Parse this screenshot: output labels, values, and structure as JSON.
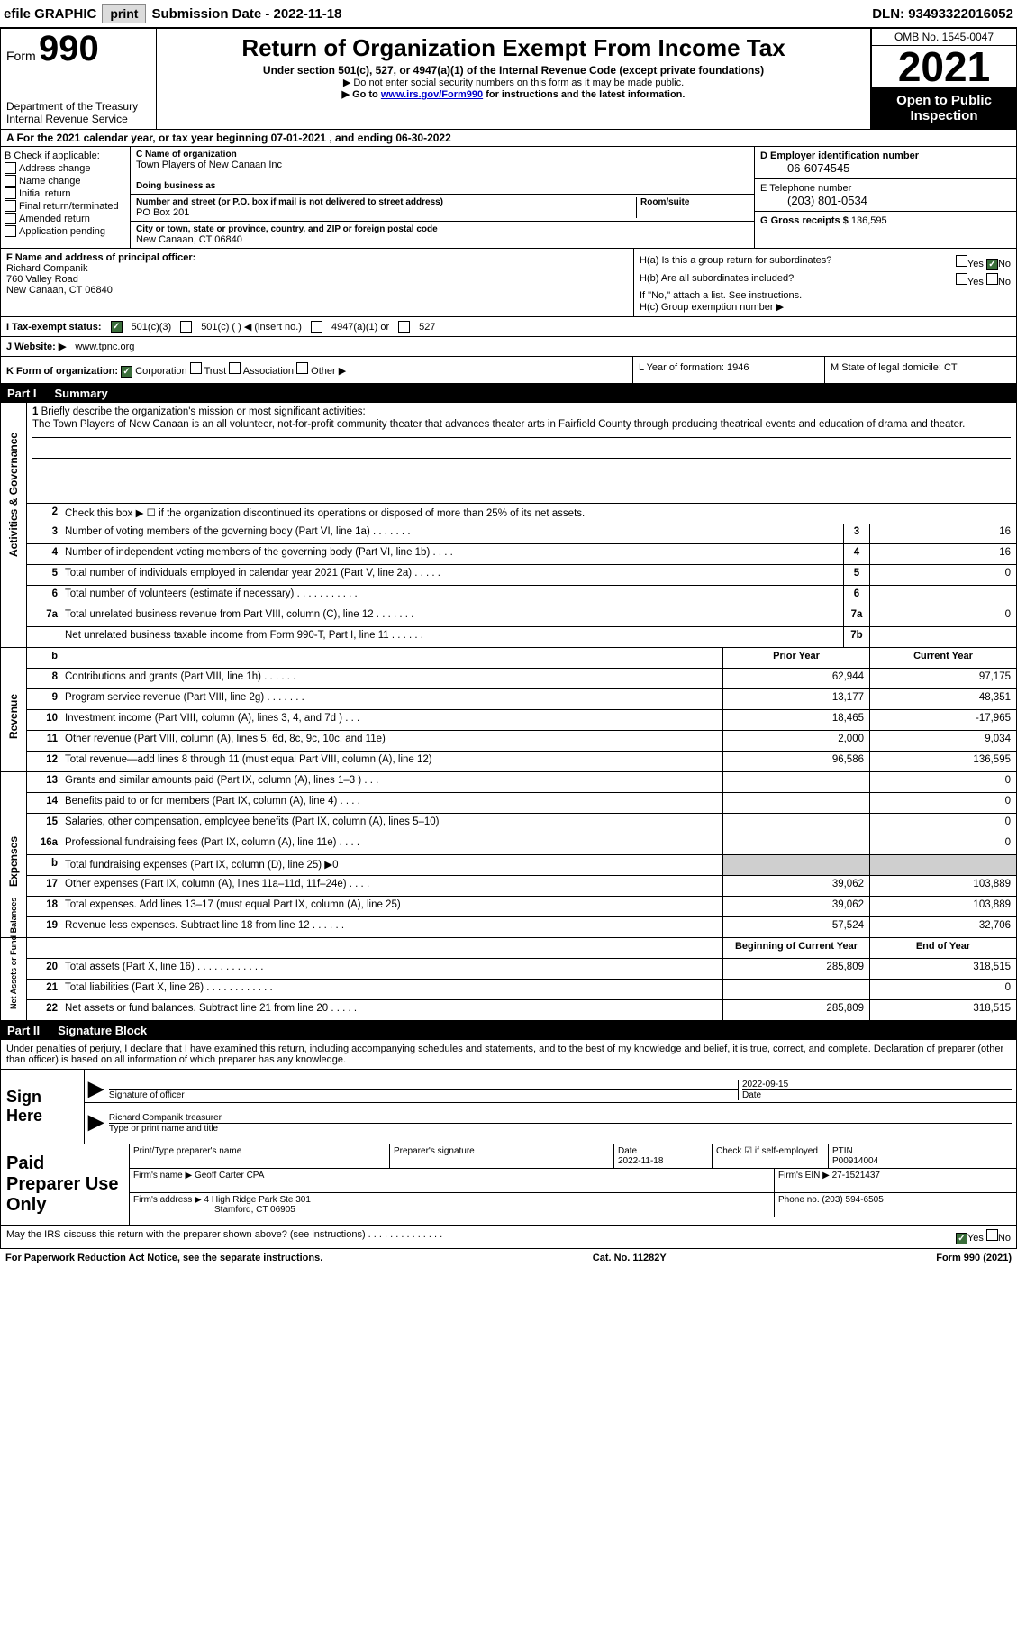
{
  "topbar": {
    "efile_label": "efile GRAPHIC",
    "print_btn": "print",
    "submission_label": "Submission Date - 2022-11-18",
    "dln_label": "DLN: 93493322016052"
  },
  "header": {
    "form_word": "Form",
    "form_number": "990",
    "title": "Return of Organization Exempt From Income Tax",
    "subtitle": "Under section 501(c), 527, or 4947(a)(1) of the Internal Revenue Code (except private foundations)",
    "ssn_line": "▶ Do not enter social security numbers on this form as it may be made public.",
    "goto_prefix": "▶ Go to ",
    "goto_link": "www.irs.gov/Form990",
    "goto_suffix": " for instructions and the latest information.",
    "omb": "OMB No. 1545-0047",
    "year": "2021",
    "open_public": "Open to Public Inspection",
    "dept": "Department of the Treasury",
    "irs": "Internal Revenue Service"
  },
  "row_a": "A For the 2021 calendar year, or tax year beginning 07-01-2021    , and ending 06-30-2022",
  "col_b": {
    "label": "B Check if applicable:",
    "items": [
      "Address change",
      "Name change",
      "Initial return",
      "Final return/terminated",
      "Amended return",
      "Application pending"
    ]
  },
  "col_c": {
    "name_label": "C Name of organization",
    "name": "Town Players of New Canaan Inc",
    "dba_label": "Doing business as",
    "dba": "",
    "street_label": "Number and street (or P.O. box if mail is not delivered to street address)",
    "room_label": "Room/suite",
    "street": "PO Box 201",
    "city_label": "City or town, state or province, country, and ZIP or foreign postal code",
    "city": "New Canaan, CT  06840"
  },
  "col_d": {
    "ein_label": "D Employer identification number",
    "ein": "06-6074545",
    "phone_label": "E Telephone number",
    "phone": "(203) 801-0534",
    "gross_label": "G Gross receipts $",
    "gross": "136,595"
  },
  "row_f": {
    "label": "F  Name and address of principal officer:",
    "name": "Richard Companik",
    "street": "760 Valley Road",
    "city": "New Canaan, CT  06840"
  },
  "row_h": {
    "ha_label": "H(a)  Is this a group return for subordinates?",
    "hb_label": "H(b)  Are all subordinates included?",
    "hb_note": "If \"No,\" attach a list. See instructions.",
    "hc_label": "H(c)  Group exemption number ▶",
    "yes": "Yes",
    "no": "No"
  },
  "row_i": {
    "label": "I  Tax-exempt status:",
    "opts": [
      "501(c)(3)",
      "501(c) (  ) ◀ (insert no.)",
      "4947(a)(1) or",
      "527"
    ]
  },
  "row_j": {
    "label": "J  Website: ▶",
    "value": " www.tpnc.org"
  },
  "row_k": {
    "label": "K Form of organization:",
    "opts": [
      "Corporation",
      "Trust",
      "Association",
      "Other ▶"
    ]
  },
  "row_l": {
    "label": "L Year of formation: 1946"
  },
  "row_m": {
    "label": "M State of legal domicile: CT"
  },
  "part1": {
    "num": "Part I",
    "title": "Summary",
    "tab_ag": "Activities & Governance",
    "tab_rev": "Revenue",
    "tab_exp": "Expenses",
    "tab_na": "Net Assets or Fund Balances",
    "mission_label": "Briefly describe the organization's mission or most significant activities:",
    "mission": "The Town Players of New Canaan is an all volunteer, not-for-profit community theater that advances theater arts in Fairfield County through producing theatrical events and education of drama and theater.",
    "line2": "Check this box ▶ ☐  if the organization discontinued its operations or disposed of more than 25% of its net assets.",
    "rows_gov": [
      {
        "n": "3",
        "label": "Number of voting members of the governing body (Part VI, line 1a)   .    .    .    .    .    .    .",
        "box": "3",
        "val": "16"
      },
      {
        "n": "4",
        "label": "Number of independent voting members of the governing body (Part VI, line 1b)   .    .    .    .",
        "box": "4",
        "val": "16"
      },
      {
        "n": "5",
        "label": "Total number of individuals employed in calendar year 2021 (Part V, line 2a)   .    .    .    .    .",
        "box": "5",
        "val": "0"
      },
      {
        "n": "6",
        "label": "Total number of volunteers (estimate if necessary)    .    .    .    .    .    .    .    .    .    .    .",
        "box": "6",
        "val": ""
      },
      {
        "n": "7a",
        "label": "Total unrelated business revenue from Part VIII, column (C), line 12   .    .    .    .    .    .    .",
        "box": "7a",
        "val": "0"
      },
      {
        "n": "",
        "label": "Net unrelated business taxable income from Form 990-T, Part I, line 11   .    .    .    .    .    .",
        "box": "7b",
        "val": ""
      }
    ],
    "hdr_prior": "Prior Year",
    "hdr_current": "Current Year",
    "rows_rev": [
      {
        "n": "8",
        "label": "Contributions and grants (Part VIII, line 1h)    .    .    .    .    .    .",
        "p": "62,944",
        "c": "97,175"
      },
      {
        "n": "9",
        "label": "Program service revenue (Part VIII, line 2g)   .    .    .    .    .    .    .",
        "p": "13,177",
        "c": "48,351"
      },
      {
        "n": "10",
        "label": "Investment income (Part VIII, column (A), lines 3, 4, and 7d )    .    .    .",
        "p": "18,465",
        "c": "-17,965"
      },
      {
        "n": "11",
        "label": "Other revenue (Part VIII, column (A), lines 5, 6d, 8c, 9c, 10c, and 11e)",
        "p": "2,000",
        "c": "9,034"
      },
      {
        "n": "12",
        "label": "Total revenue—add lines 8 through 11 (must equal Part VIII, column (A), line 12)",
        "p": "96,586",
        "c": "136,595"
      }
    ],
    "rows_exp": [
      {
        "n": "13",
        "label": "Grants and similar amounts paid (Part IX, column (A), lines 1–3 )   .    .    .",
        "p": "",
        "c": "0"
      },
      {
        "n": "14",
        "label": "Benefits paid to or for members (Part IX, column (A), line 4)   .    .    .    .",
        "p": "",
        "c": "0"
      },
      {
        "n": "15",
        "label": "Salaries, other compensation, employee benefits (Part IX, column (A), lines 5–10)",
        "p": "",
        "c": "0"
      },
      {
        "n": "16a",
        "label": "Professional fundraising fees (Part IX, column (A), line 11e)    .    .    .    .",
        "p": "",
        "c": "0"
      },
      {
        "n": "b",
        "label": "Total fundraising expenses (Part IX, column (D), line 25) ▶0",
        "p": "GREY",
        "c": "GREY"
      },
      {
        "n": "17",
        "label": "Other expenses (Part IX, column (A), lines 11a–11d, 11f–24e)    .    .    .    .",
        "p": "39,062",
        "c": "103,889"
      },
      {
        "n": "18",
        "label": "Total expenses. Add lines 13–17 (must equal Part IX, column (A), line 25)",
        "p": "39,062",
        "c": "103,889"
      },
      {
        "n": "19",
        "label": "Revenue less expenses. Subtract line 18 from line 12   .    .    .    .    .    .",
        "p": "57,524",
        "c": "32,706"
      }
    ],
    "hdr_begin": "Beginning of Current Year",
    "hdr_end": "End of Year",
    "rows_na": [
      {
        "n": "20",
        "label": "Total assets (Part X, line 16)   .    .    .    .    .    .    .    .    .    .    .    .",
        "p": "285,809",
        "c": "318,515"
      },
      {
        "n": "21",
        "label": "Total liabilities (Part X, line 26)  .    .    .    .    .    .    .    .    .    .    .    .",
        "p": "",
        "c": "0"
      },
      {
        "n": "22",
        "label": "Net assets or fund balances. Subtract line 21 from line 20   .    .    .    .    .",
        "p": "285,809",
        "c": "318,515"
      }
    ]
  },
  "part2": {
    "num": "Part II",
    "title": "Signature Block",
    "declaration": "Under penalties of perjury, I declare that I have examined this return, including accompanying schedules and statements, and to the best of my knowledge and belief, it is true, correct, and complete. Declaration of preparer (other than officer) is based on all information of which preparer has any knowledge."
  },
  "sign": {
    "label": "Sign Here",
    "sig_officer": "Signature of officer",
    "date": "2022-09-15",
    "date_label": "Date",
    "name_title": "Richard Companik  treasurer",
    "name_title_label": "Type or print name and title"
  },
  "paid": {
    "label": "Paid Preparer Use Only",
    "print_name_label": "Print/Type preparer's name",
    "sig_label": "Preparer's signature",
    "date_label": "Date",
    "date": "2022-11-18",
    "check_label": "Check ☑ if self-employed",
    "ptin_label": "PTIN",
    "ptin": "P00914004",
    "firm_name_label": "Firm's name    ▶",
    "firm_name": "Geoff Carter CPA",
    "firm_ein_label": "Firm's EIN ▶",
    "firm_ein": "27-1521437",
    "firm_addr_label": "Firm's address ▶",
    "firm_addr1": "4 High Ridge Park Ste 301",
    "firm_addr2": "Stamford, CT  06905",
    "phone_label": "Phone no.",
    "phone": "(203) 594-6505"
  },
  "footer": {
    "discuss": "May the IRS discuss this return with the preparer shown above? (see instructions)    .    .    .    .    .    .    .    .    .    .    .    .    .    .",
    "yes": "Yes",
    "no": "No",
    "paperwork": "For Paperwork Reduction Act Notice, see the separate instructions.",
    "cat": "Cat. No. 11282Y",
    "form": "Form 990 (2021)"
  }
}
